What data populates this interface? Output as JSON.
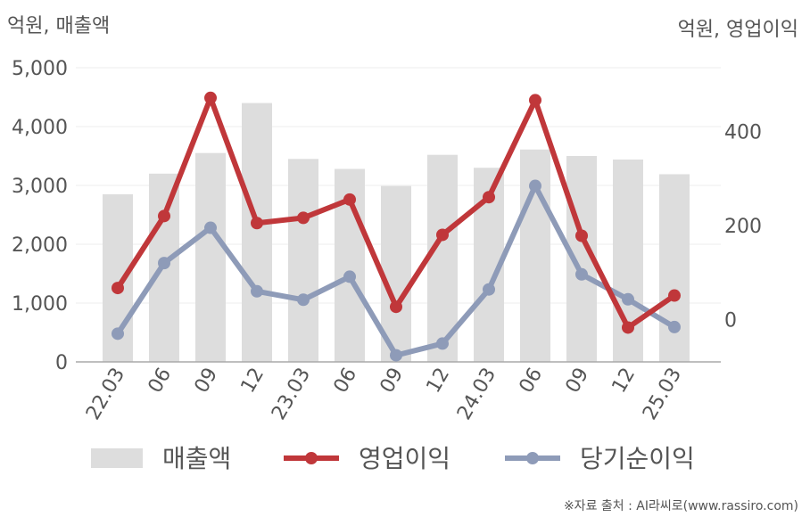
{
  "chart_data": {
    "type": "bar+line",
    "categories": [
      "22.03",
      "06",
      "09",
      "12",
      "23.03",
      "06",
      "09",
      "12",
      "24.03",
      "06",
      "09",
      "12",
      "25.03"
    ],
    "left_axis": {
      "label": "억원, 매출액",
      "ylim": [
        0,
        5000
      ],
      "ticks": [
        0,
        1000,
        2000,
        3000,
        4000,
        5000
      ],
      "tick_labels": [
        "0",
        "1,000",
        "2,000",
        "3,000",
        "4,000",
        "5,000"
      ]
    },
    "right_axis": {
      "label": "억원, 영업이익",
      "ylim": [
        -90,
        535
      ],
      "ticks": [
        0,
        200,
        400
      ],
      "tick_labels": [
        "0",
        "200",
        "400"
      ]
    },
    "series": [
      {
        "name": "매출액",
        "kind": "bar",
        "axis": "left",
        "color": "#dddddd",
        "values": [
          2850,
          3200,
          3550,
          4400,
          3450,
          3280,
          2990,
          3520,
          3300,
          3610,
          3500,
          3440,
          3190
        ]
      },
      {
        "name": "영업이익",
        "kind": "line",
        "axis": "right",
        "color": "#c0373a",
        "values": [
          67,
          220,
          471,
          205,
          216,
          255,
          27,
          180,
          260,
          466,
          178,
          -17,
          51
        ]
      },
      {
        "name": "당기순이익",
        "kind": "line",
        "axis": "right",
        "color": "#8e9bb8",
        "values": [
          -30,
          120,
          195,
          60,
          42,
          91,
          -76,
          -51,
          64,
          284,
          96,
          43,
          -16
        ]
      }
    ],
    "grid": true,
    "legend_position": "bottom"
  },
  "source_note": "※자료 출처 : AI라씨로(www.rassiro.com)"
}
